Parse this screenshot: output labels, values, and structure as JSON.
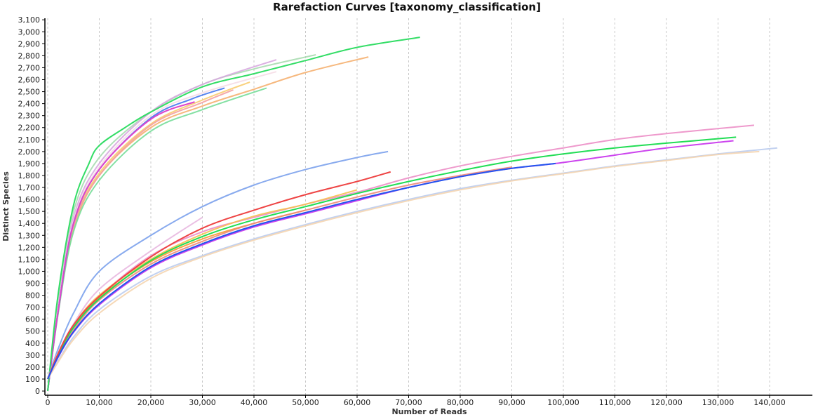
{
  "chart_data": {
    "type": "line",
    "title": "Rarefaction Curves [taxonomy_classification]",
    "xlabel": "Number of Reads",
    "ylabel": "Distinct Species",
    "xlim": [
      -544,
      148300
    ],
    "ylim": [
      -35,
      3113
    ],
    "x_ticks": [
      0,
      10000,
      20000,
      30000,
      40000,
      50000,
      60000,
      70000,
      80000,
      90000,
      100000,
      110000,
      120000,
      130000,
      140000
    ],
    "x_tick_labels": [
      "0",
      "10,000",
      "20,000",
      "30,000",
      "40,000",
      "50,000",
      "60,000",
      "70,000",
      "80,000",
      "90,000",
      "100,000",
      "110,000",
      "120,000",
      "130,000",
      "140,000"
    ],
    "y_ticks": [
      0,
      100,
      200,
      300,
      400,
      500,
      600,
      700,
      800,
      900,
      1000,
      1100,
      1200,
      1300,
      1400,
      1500,
      1600,
      1700,
      1800,
      1900,
      2000,
      2100,
      2200,
      2300,
      2400,
      2500,
      2600,
      2700,
      2800,
      2900,
      3000,
      3100
    ],
    "y_tick_labels": [
      "0",
      "100",
      "200",
      "300",
      "400",
      "500",
      "600",
      "700",
      "800",
      "900",
      "1,000",
      "1,100",
      "1,200",
      "1,300",
      "1,400",
      "1,500",
      "1,600",
      "1,700",
      "1,800",
      "1,900",
      "2,000",
      "2,100",
      "2,200",
      "2,300",
      "2,400",
      "2,500",
      "2,600",
      "2,700",
      "2,800",
      "2,900",
      "3,000",
      "3,100"
    ],
    "grid": {
      "vertical": true,
      "horizontal": false
    },
    "legend": "none",
    "series": [
      {
        "color": "#a8dcb0",
        "opacity": 0.9,
        "points": [
          [
            0,
            0
          ],
          [
            2000,
            750
          ],
          [
            5000,
            1500
          ],
          [
            10000,
            1950
          ],
          [
            20000,
            2330
          ],
          [
            30000,
            2560
          ],
          [
            40000,
            2690
          ],
          [
            52000,
            2808
          ]
        ]
      },
      {
        "color": "#d8a8e0",
        "opacity": 0.9,
        "points": [
          [
            0,
            0
          ],
          [
            2000,
            700
          ],
          [
            5000,
            1450
          ],
          [
            10000,
            1900
          ],
          [
            20000,
            2330
          ],
          [
            30000,
            2560
          ],
          [
            44350,
            2767
          ]
        ]
      },
      {
        "color": "#f5b070",
        "opacity": 0.9,
        "points": [
          [
            0,
            0
          ],
          [
            2000,
            650
          ],
          [
            5000,
            1350
          ],
          [
            10000,
            1800
          ],
          [
            20000,
            2200
          ],
          [
            30000,
            2380
          ],
          [
            40000,
            2520
          ],
          [
            50000,
            2660
          ],
          [
            62200,
            2790
          ]
        ]
      },
      {
        "color": "#f5dde5",
        "opacity": 0.9,
        "points": [
          [
            0,
            0
          ],
          [
            2000,
            680
          ],
          [
            5000,
            1420
          ],
          [
            10000,
            1870
          ],
          [
            20000,
            2300
          ],
          [
            30000,
            2490
          ],
          [
            44350,
            2667
          ]
        ]
      },
      {
        "color": "#f8cc70",
        "opacity": 0.9,
        "points": [
          [
            0,
            0
          ],
          [
            2000,
            660
          ],
          [
            5000,
            1380
          ],
          [
            10000,
            1820
          ],
          [
            20000,
            2230
          ],
          [
            30000,
            2430
          ],
          [
            39200,
            2580
          ]
        ]
      },
      {
        "color": "#f4a0a0",
        "opacity": 0.9,
        "points": [
          [
            0,
            0
          ],
          [
            2000,
            650
          ],
          [
            5000,
            1370
          ],
          [
            10000,
            1800
          ],
          [
            20000,
            2220
          ],
          [
            30000,
            2410
          ],
          [
            36000,
            2515
          ]
        ]
      },
      {
        "color": "#77dd99",
        "opacity": 0.9,
        "points": [
          [
            0,
            0
          ],
          [
            2000,
            640
          ],
          [
            5000,
            1330
          ],
          [
            10000,
            1760
          ],
          [
            20000,
            2170
          ],
          [
            30000,
            2350
          ],
          [
            42450,
            2530
          ]
        ]
      },
      {
        "color": "#4477ee",
        "opacity": 0.9,
        "points": [
          [
            0,
            0
          ],
          [
            2000,
            660
          ],
          [
            5000,
            1400
          ],
          [
            10000,
            1850
          ],
          [
            20000,
            2280
          ],
          [
            28000,
            2440
          ],
          [
            34300,
            2530
          ]
        ]
      },
      {
        "color": "#dd44cc",
        "opacity": 1,
        "points": [
          [
            0,
            0
          ],
          [
            2000,
            660
          ],
          [
            5000,
            1400
          ],
          [
            10000,
            1850
          ],
          [
            20000,
            2270
          ],
          [
            28500,
            2415
          ]
        ]
      },
      {
        "color": "#33dd66",
        "opacity": 1,
        "points": [
          [
            0,
            0
          ],
          [
            2000,
            800
          ],
          [
            5000,
            1550
          ],
          [
            8000,
            1900
          ],
          [
            10000,
            2050
          ],
          [
            15000,
            2200
          ],
          [
            20000,
            2330
          ],
          [
            30000,
            2540
          ],
          [
            40000,
            2650
          ],
          [
            50000,
            2760
          ],
          [
            60000,
            2870
          ],
          [
            72200,
            2954
          ]
        ]
      },
      {
        "color": "#88aaee",
        "opacity": 1,
        "points": [
          [
            0,
            100
          ],
          [
            2000,
            350
          ],
          [
            5000,
            650
          ],
          [
            10000,
            1000
          ],
          [
            20000,
            1300
          ],
          [
            30000,
            1540
          ],
          [
            40000,
            1720
          ],
          [
            50000,
            1850
          ],
          [
            60000,
            1950
          ],
          [
            66000,
            2000
          ]
        ]
      },
      {
        "color": "#e8b8e0",
        "opacity": 0.9,
        "points": [
          [
            0,
            100
          ],
          [
            2000,
            320
          ],
          [
            5000,
            560
          ],
          [
            10000,
            850
          ],
          [
            20000,
            1170
          ],
          [
            30000,
            1450
          ]
        ]
      },
      {
        "color": "#bbccee",
        "opacity": 0.9,
        "points": [
          [
            0,
            100
          ],
          [
            2000,
            250
          ],
          [
            5000,
            450
          ],
          [
            10000,
            680
          ],
          [
            20000,
            960
          ],
          [
            30000,
            1130
          ],
          [
            40000,
            1270
          ],
          [
            50000,
            1390
          ],
          [
            60000,
            1500
          ],
          [
            70000,
            1600
          ],
          [
            80000,
            1690
          ],
          [
            90000,
            1760
          ],
          [
            100000,
            1820
          ],
          [
            110000,
            1880
          ],
          [
            120000,
            1930
          ],
          [
            130000,
            1980
          ],
          [
            141500,
            2030
          ]
        ]
      },
      {
        "color": "#f5d5b0",
        "opacity": 0.9,
        "points": [
          [
            0,
            100
          ],
          [
            2000,
            240
          ],
          [
            5000,
            430
          ],
          [
            10000,
            650
          ],
          [
            20000,
            940
          ],
          [
            30000,
            1120
          ],
          [
            40000,
            1260
          ],
          [
            50000,
            1380
          ],
          [
            60000,
            1490
          ],
          [
            70000,
            1590
          ],
          [
            80000,
            1680
          ],
          [
            90000,
            1755
          ],
          [
            100000,
            1815
          ],
          [
            110000,
            1875
          ],
          [
            120000,
            1925
          ],
          [
            130000,
            1975
          ],
          [
            138000,
            2000
          ]
        ]
      },
      {
        "color": "#ee99cc",
        "opacity": 1,
        "points": [
          [
            0,
            100
          ],
          [
            2000,
            300
          ],
          [
            5000,
            540
          ],
          [
            10000,
            790
          ],
          [
            20000,
            1130
          ],
          [
            30000,
            1330
          ],
          [
            40000,
            1450
          ],
          [
            50000,
            1560
          ],
          [
            60000,
            1660
          ],
          [
            70000,
            1780
          ],
          [
            80000,
            1880
          ],
          [
            90000,
            1960
          ],
          [
            100000,
            2030
          ],
          [
            110000,
            2100
          ],
          [
            120000,
            2150
          ],
          [
            137000,
            2220
          ]
        ]
      },
      {
        "color": "#f59a30",
        "opacity": 0.9,
        "points": [
          [
            0,
            100
          ],
          [
            2000,
            300
          ],
          [
            5000,
            530
          ],
          [
            10000,
            780
          ],
          [
            20000,
            1080
          ],
          [
            30000,
            1270
          ],
          [
            40000,
            1400
          ],
          [
            50000,
            1510
          ]
        ]
      },
      {
        "color": "#f5c050",
        "opacity": 0.9,
        "points": [
          [
            0,
            100
          ],
          [
            2000,
            310
          ],
          [
            5000,
            550
          ],
          [
            10000,
            800
          ],
          [
            20000,
            1100
          ],
          [
            30000,
            1310
          ],
          [
            40000,
            1460
          ],
          [
            50000,
            1560
          ],
          [
            60000,
            1680
          ]
        ]
      },
      {
        "color": "#ee8877",
        "opacity": 0.9,
        "points": [
          [
            0,
            100
          ],
          [
            2000,
            290
          ],
          [
            5000,
            510
          ],
          [
            10000,
            760
          ],
          [
            20000,
            1060
          ],
          [
            30000,
            1250
          ],
          [
            40000,
            1400
          ],
          [
            50000,
            1510
          ],
          [
            60000,
            1620
          ],
          [
            70000,
            1720
          ],
          [
            80000,
            1800
          ],
          [
            90000,
            1870
          ]
        ]
      },
      {
        "color": "#cc44ee",
        "opacity": 1,
        "points": [
          [
            0,
            100
          ],
          [
            2000,
            280
          ],
          [
            5000,
            490
          ],
          [
            10000,
            720
          ],
          [
            20000,
            1030
          ],
          [
            30000,
            1220
          ],
          [
            40000,
            1370
          ],
          [
            50000,
            1480
          ],
          [
            60000,
            1590
          ],
          [
            70000,
            1700
          ],
          [
            80000,
            1790
          ],
          [
            90000,
            1860
          ],
          [
            98500,
            1900
          ],
          [
            110000,
            1970
          ],
          [
            120000,
            2030
          ],
          [
            133000,
            2090
          ]
        ]
      },
      {
        "color": "#22dd55",
        "opacity": 1,
        "points": [
          [
            0,
            100
          ],
          [
            2000,
            300
          ],
          [
            5000,
            530
          ],
          [
            10000,
            770
          ],
          [
            20000,
            1090
          ],
          [
            30000,
            1290
          ],
          [
            40000,
            1430
          ],
          [
            50000,
            1540
          ],
          [
            60000,
            1650
          ],
          [
            70000,
            1750
          ],
          [
            80000,
            1840
          ],
          [
            90000,
            1920
          ],
          [
            100000,
            1980
          ],
          [
            110000,
            2030
          ],
          [
            120000,
            2070
          ],
          [
            133500,
            2120
          ]
        ]
      },
      {
        "color": "#ee4444",
        "opacity": 1,
        "points": [
          [
            0,
            100
          ],
          [
            2000,
            310
          ],
          [
            5000,
            550
          ],
          [
            10000,
            790
          ],
          [
            20000,
            1120
          ],
          [
            30000,
            1360
          ],
          [
            40000,
            1510
          ],
          [
            50000,
            1640
          ],
          [
            60000,
            1750
          ],
          [
            66500,
            1830
          ]
        ]
      },
      {
        "color": "#2255ee",
        "opacity": 1,
        "points": [
          [
            0,
            100
          ],
          [
            2000,
            285
          ],
          [
            5000,
            495
          ],
          [
            10000,
            730
          ],
          [
            20000,
            1040
          ],
          [
            30000,
            1230
          ],
          [
            40000,
            1380
          ],
          [
            50000,
            1490
          ],
          [
            60000,
            1600
          ],
          [
            70000,
            1700
          ],
          [
            80000,
            1790
          ],
          [
            90000,
            1860
          ],
          [
            98500,
            1900
          ]
        ]
      }
    ]
  }
}
